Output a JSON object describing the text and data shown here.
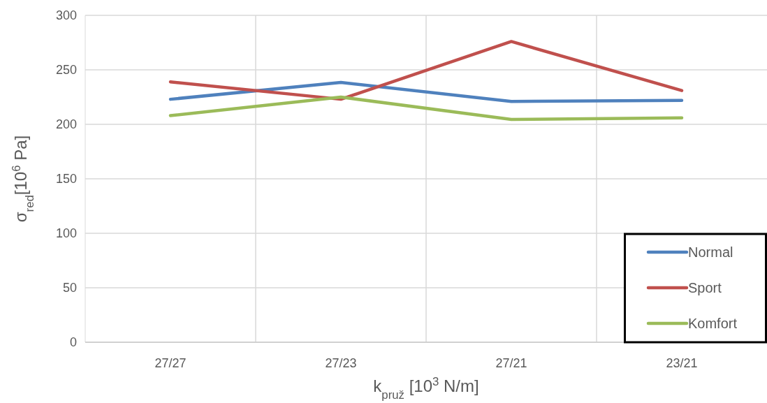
{
  "chart_data": {
    "type": "line",
    "xlabel": "k$_{pruž}$ [10$^{3}$ N/m]",
    "ylabel": "σ$_{red}$[10$^{6}$ Pa]",
    "categories": [
      "27/27",
      "27/23",
      "27/21",
      "23/21"
    ],
    "series": [
      {
        "name": "Normal",
        "color": "#4f81bd",
        "values": [
          223,
          238.5,
          221,
          222
        ]
      },
      {
        "name": "Sport",
        "color": "#c0504d",
        "values": [
          239,
          223,
          276,
          231
        ]
      },
      {
        "name": "Komfort",
        "color": "#9bbb59",
        "values": [
          208,
          225,
          204.5,
          206
        ]
      }
    ],
    "ylim": [
      0,
      300
    ],
    "yticks": [
      0,
      50,
      100,
      150,
      200,
      250,
      300
    ],
    "grid": true,
    "legend": "bottom right"
  }
}
